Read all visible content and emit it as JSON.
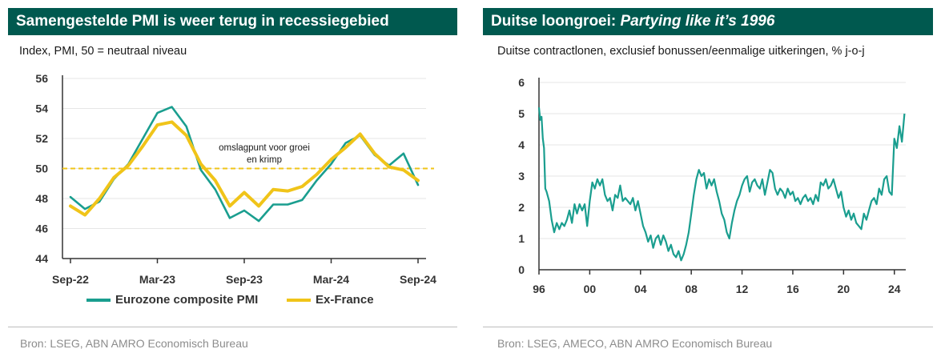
{
  "chart_data": [
    {
      "type": "line",
      "title": "Samengestelde PMI is weer terug in recessiegebied",
      "subtitle": "Index, PMI, 50 = neutraal niveau",
      "source": "Bron: LSEG, ABN AMRO Economisch Bureau",
      "y_ticks": [
        "56",
        "54",
        "52",
        "50",
        "48",
        "46",
        "44"
      ],
      "x_ticks": [
        "Sep-22",
        "Mar-23",
        "Sep-23",
        "Mar-24",
        "Sep-24"
      ],
      "ylim": [
        44,
        56
      ],
      "x": [
        "Sep-22",
        "Oct-22",
        "Nov-22",
        "Dec-22",
        "Jan-23",
        "Feb-23",
        "Mar-23",
        "Apr-23",
        "May-23",
        "Jun-23",
        "Jul-23",
        "Aug-23",
        "Sep-23",
        "Oct-23",
        "Nov-23",
        "Dec-23",
        "Jan-24",
        "Feb-24",
        "Mar-24",
        "Apr-24",
        "May-24",
        "Jun-24",
        "Jul-24",
        "Aug-24",
        "Sep-24"
      ],
      "reference_line": {
        "value": 50,
        "label": "omslagpunt voor groei en krimp",
        "label_lines": [
          "omslagpunt voor groei",
          "en krimp"
        ]
      },
      "series": [
        {
          "name": "Eurozone composite PMI",
          "color": "#1a9e8f",
          "values": [
            48.1,
            47.3,
            47.8,
            49.3,
            50.3,
            52.0,
            53.7,
            54.1,
            52.8,
            49.9,
            48.6,
            46.7,
            47.2,
            46.5,
            47.6,
            47.6,
            47.9,
            49.2,
            50.3,
            51.7,
            52.2,
            50.9,
            50.2,
            51.0,
            48.9
          ]
        },
        {
          "name": "Ex-France",
          "color": "#f0c419",
          "values": [
            47.5,
            46.9,
            48.0,
            49.4,
            50.2,
            51.5,
            52.9,
            53.1,
            52.2,
            50.3,
            49.2,
            47.5,
            48.4,
            47.5,
            48.6,
            48.5,
            48.8,
            49.6,
            50.6,
            51.4,
            52.3,
            51.0,
            50.1,
            49.9,
            49.2
          ]
        }
      ],
      "legend_placement": "bottom"
    },
    {
      "type": "line",
      "title_plain": "Duitse loongroei: ",
      "title_italic": "Partying like it’s 1996",
      "subtitle": "Duitse contractlonen, exclusief bonussen/eenmalige uitkeringen, % j-o-j",
      "source": "Bron: LSEG, AMECO, ABN AMRO Economisch Bureau",
      "y_ticks": [
        "6",
        "5",
        "4",
        "3",
        "2",
        "1",
        "0"
      ],
      "x_ticks": [
        "96",
        "00",
        "04",
        "08",
        "12",
        "16",
        "20",
        "24"
      ],
      "ylim": [
        0,
        6
      ],
      "xlim": [
        1996,
        2024.9
      ],
      "series": [
        {
          "name": "",
          "color": "#1a9e8f",
          "points": [
            [
              1996.0,
              5.2
            ],
            [
              1996.1,
              4.8
            ],
            [
              1996.2,
              4.9
            ],
            [
              1996.3,
              4.2
            ],
            [
              1996.4,
              3.9
            ],
            [
              1996.5,
              2.6
            ],
            [
              1996.6,
              2.5
            ],
            [
              1996.8,
              2.2
            ],
            [
              1997.0,
              1.6
            ],
            [
              1997.2,
              1.2
            ],
            [
              1997.4,
              1.5
            ],
            [
              1997.6,
              1.3
            ],
            [
              1997.8,
              1.5
            ],
            [
              1998.0,
              1.4
            ],
            [
              1998.2,
              1.6
            ],
            [
              1998.4,
              1.9
            ],
            [
              1998.6,
              1.5
            ],
            [
              1998.8,
              2.1
            ],
            [
              1999.0,
              1.8
            ],
            [
              1999.2,
              2.1
            ],
            [
              1999.4,
              1.9
            ],
            [
              1999.6,
              2.1
            ],
            [
              1999.8,
              1.4
            ],
            [
              2000.0,
              2.2
            ],
            [
              2000.2,
              2.8
            ],
            [
              2000.4,
              2.6
            ],
            [
              2000.6,
              2.9
            ],
            [
              2000.8,
              2.7
            ],
            [
              2001.0,
              2.9
            ],
            [
              2001.2,
              2.4
            ],
            [
              2001.4,
              2.2
            ],
            [
              2001.6,
              2.3
            ],
            [
              2001.8,
              1.9
            ],
            [
              2002.0,
              2.4
            ],
            [
              2002.2,
              2.3
            ],
            [
              2002.4,
              2.7
            ],
            [
              2002.6,
              2.2
            ],
            [
              2002.8,
              2.3
            ],
            [
              2003.0,
              2.2
            ],
            [
              2003.2,
              2.1
            ],
            [
              2003.4,
              2.3
            ],
            [
              2003.6,
              1.9
            ],
            [
              2003.8,
              2.2
            ],
            [
              2004.0,
              1.8
            ],
            [
              2004.2,
              1.4
            ],
            [
              2004.4,
              1.2
            ],
            [
              2004.6,
              0.9
            ],
            [
              2004.8,
              1.1
            ],
            [
              2005.0,
              0.7
            ],
            [
              2005.2,
              1.0
            ],
            [
              2005.4,
              1.1
            ],
            [
              2005.6,
              0.8
            ],
            [
              2005.8,
              1.1
            ],
            [
              2006.0,
              0.9
            ],
            [
              2006.2,
              0.6
            ],
            [
              2006.4,
              0.8
            ],
            [
              2006.6,
              0.5
            ],
            [
              2006.8,
              0.4
            ],
            [
              2007.0,
              0.6
            ],
            [
              2007.2,
              0.3
            ],
            [
              2007.4,
              0.5
            ],
            [
              2007.6,
              0.8
            ],
            [
              2007.8,
              1.2
            ],
            [
              2008.0,
              1.8
            ],
            [
              2008.2,
              2.4
            ],
            [
              2008.4,
              2.9
            ],
            [
              2008.6,
              3.2
            ],
            [
              2008.8,
              3.0
            ],
            [
              2009.0,
              3.1
            ],
            [
              2009.2,
              2.6
            ],
            [
              2009.4,
              2.9
            ],
            [
              2009.6,
              2.7
            ],
            [
              2009.8,
              2.9
            ],
            [
              2010.0,
              2.5
            ],
            [
              2010.2,
              2.2
            ],
            [
              2010.4,
              1.8
            ],
            [
              2010.6,
              1.6
            ],
            [
              2010.8,
              1.2
            ],
            [
              2011.0,
              1.0
            ],
            [
              2011.2,
              1.5
            ],
            [
              2011.4,
              1.9
            ],
            [
              2011.6,
              2.2
            ],
            [
              2011.8,
              2.4
            ],
            [
              2012.0,
              2.7
            ],
            [
              2012.2,
              2.9
            ],
            [
              2012.4,
              3.0
            ],
            [
              2012.6,
              2.5
            ],
            [
              2012.8,
              2.8
            ],
            [
              2013.0,
              2.9
            ],
            [
              2013.2,
              2.7
            ],
            [
              2013.4,
              2.6
            ],
            [
              2013.6,
              2.9
            ],
            [
              2013.8,
              2.4
            ],
            [
              2014.0,
              2.8
            ],
            [
              2014.2,
              3.2
            ],
            [
              2014.4,
              3.1
            ],
            [
              2014.6,
              2.6
            ],
            [
              2014.8,
              2.4
            ],
            [
              2015.0,
              2.6
            ],
            [
              2015.2,
              2.5
            ],
            [
              2015.4,
              2.3
            ],
            [
              2015.6,
              2.6
            ],
            [
              2015.8,
              2.4
            ],
            [
              2016.0,
              2.5
            ],
            [
              2016.2,
              2.2
            ],
            [
              2016.4,
              2.3
            ],
            [
              2016.6,
              2.1
            ],
            [
              2016.8,
              2.3
            ],
            [
              2017.0,
              2.4
            ],
            [
              2017.2,
              2.2
            ],
            [
              2017.4,
              2.3
            ],
            [
              2017.6,
              2.1
            ],
            [
              2017.8,
              2.4
            ],
            [
              2018.0,
              2.2
            ],
            [
              2018.2,
              2.8
            ],
            [
              2018.4,
              2.7
            ],
            [
              2018.6,
              2.9
            ],
            [
              2018.8,
              2.6
            ],
            [
              2019.0,
              2.7
            ],
            [
              2019.2,
              2.9
            ],
            [
              2019.4,
              2.6
            ],
            [
              2019.6,
              2.3
            ],
            [
              2019.8,
              2.5
            ],
            [
              2020.0,
              2.0
            ],
            [
              2020.2,
              1.7
            ],
            [
              2020.4,
              1.9
            ],
            [
              2020.6,
              1.6
            ],
            [
              2020.8,
              1.8
            ],
            [
              2021.0,
              1.5
            ],
            [
              2021.2,
              1.4
            ],
            [
              2021.4,
              1.3
            ],
            [
              2021.6,
              1.8
            ],
            [
              2021.8,
              1.6
            ],
            [
              2022.0,
              1.9
            ],
            [
              2022.2,
              2.2
            ],
            [
              2022.4,
              2.3
            ],
            [
              2022.6,
              2.1
            ],
            [
              2022.8,
              2.6
            ],
            [
              2023.0,
              2.4
            ],
            [
              2023.2,
              2.9
            ],
            [
              2023.4,
              3.0
            ],
            [
              2023.6,
              2.5
            ],
            [
              2023.8,
              2.4
            ],
            [
              2024.0,
              4.2
            ],
            [
              2024.2,
              3.9
            ],
            [
              2024.4,
              4.6
            ],
            [
              2024.6,
              4.1
            ],
            [
              2024.8,
              5.0
            ]
          ]
        }
      ]
    }
  ]
}
